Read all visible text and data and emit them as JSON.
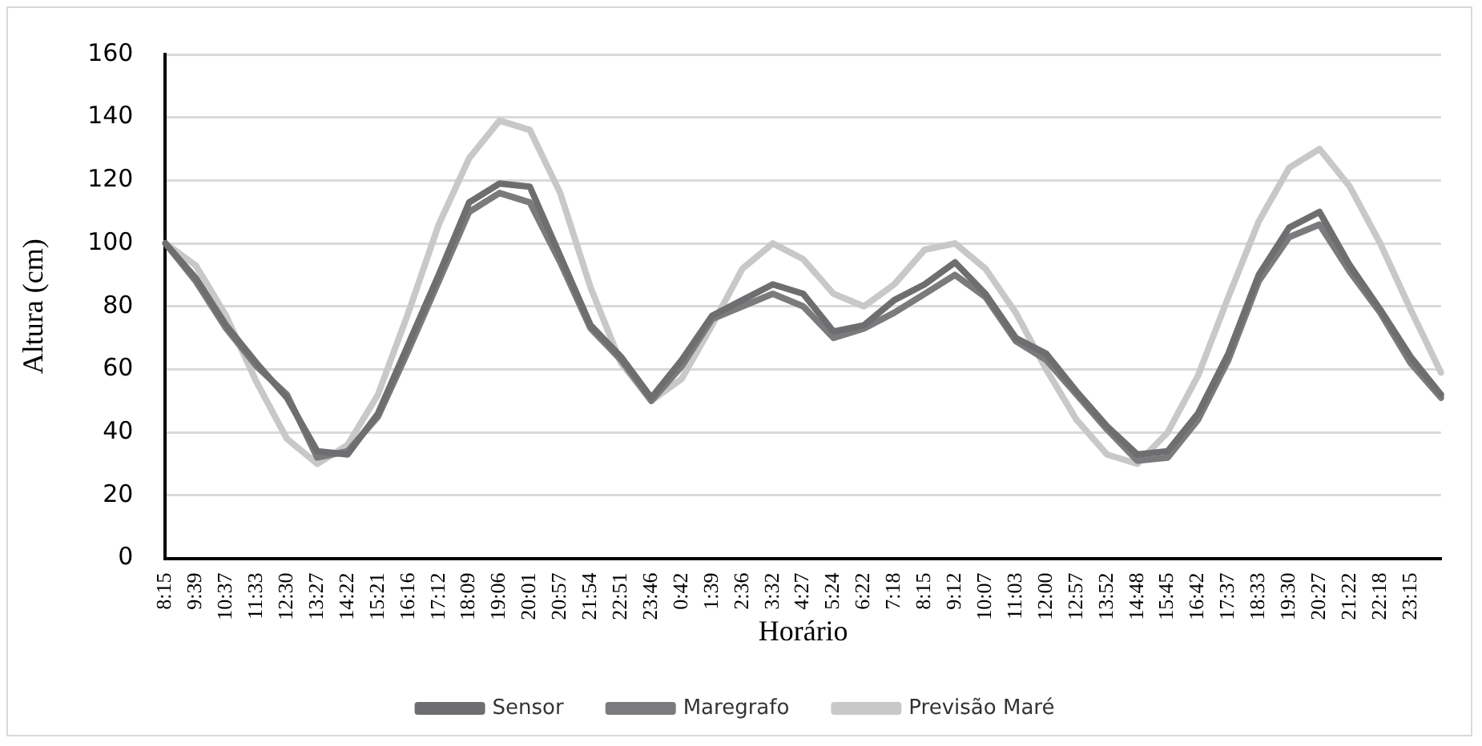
{
  "chart_data": {
    "type": "line",
    "xlabel": "Horário",
    "ylabel": "Altura (cm)",
    "categories": [
      "8:15",
      "9:39",
      "10:37",
      "11:33",
      "12:30",
      "13:27",
      "14:22",
      "15:21",
      "16:16",
      "17:12",
      "18:09",
      "19:06",
      "20:01",
      "20:57",
      "21:54",
      "22:51",
      "23:46",
      "0:42",
      "1:39",
      "2:36",
      "3:32",
      "4:27",
      "5:24",
      "6:22",
      "7:18",
      "8:15",
      "9:12",
      "10:07",
      "11:03",
      "12:00",
      "12:57",
      "13:52",
      "14:48",
      "15:45",
      "16:42",
      "17:37",
      "18:33",
      "19:30",
      "20:27",
      "21:22",
      "22:18",
      "23:15",
      null
    ],
    "series": [
      {
        "name": "Sensor",
        "color": "#6e6e70",
        "values": [
          100,
          89,
          74,
          62,
          51,
          34,
          33,
          46,
          68,
          90,
          113,
          119,
          118,
          96,
          74,
          64,
          51,
          63,
          77,
          82,
          87,
          84,
          72,
          74,
          82,
          87,
          94,
          84,
          70,
          65,
          53,
          42,
          33,
          34,
          46,
          65,
          90,
          105,
          110,
          93,
          79,
          64,
          52
        ]
      },
      {
        "name": "Maregrafo",
        "color": "#7b7b7d",
        "values": [
          100,
          88,
          73,
          61,
          52,
          32,
          34,
          45,
          66,
          88,
          110,
          116,
          113,
          94,
          73,
          63,
          50,
          61,
          76,
          80,
          84,
          80,
          70,
          73,
          78,
          84,
          90,
          83,
          69,
          63,
          52,
          41,
          31,
          32,
          44,
          63,
          88,
          102,
          106,
          91,
          78,
          62,
          51
        ]
      },
      {
        "name": "Previsão Maré",
        "color": "#c8c8c8",
        "values": [
          100,
          93,
          77,
          56,
          38,
          30,
          36,
          52,
          78,
          106,
          127,
          139,
          136,
          116,
          86,
          62,
          50,
          57,
          74,
          92,
          100,
          95,
          84,
          80,
          87,
          98,
          100,
          92,
          78,
          60,
          44,
          33,
          30,
          40,
          58,
          83,
          107,
          124,
          130,
          118,
          100,
          79,
          59
        ]
      }
    ],
    "ylim": [
      0,
      160
    ],
    "yticks": [
      0,
      20,
      40,
      60,
      80,
      100,
      120,
      140,
      160
    ],
    "grid": "y",
    "legend": "bottom",
    "marker": "none",
    "line_style": "solid"
  }
}
